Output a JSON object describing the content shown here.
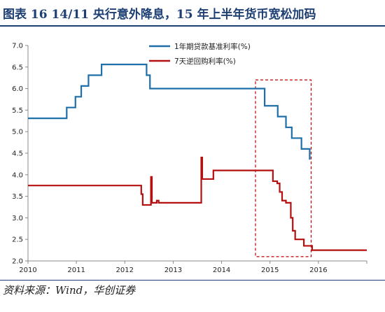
{
  "header": {
    "title": "图表 16   14/11 央行意外降息，15 年上半年货币宽松加码"
  },
  "footer": {
    "source": "资料来源：Wind，华创证券"
  },
  "chart_data": {
    "type": "line",
    "title": "",
    "xlabel": "",
    "ylabel": "",
    "x_ticks": [
      "2010",
      "2011",
      "2012",
      "2013",
      "2014",
      "2015",
      "2016"
    ],
    "y_ticks": [
      "2.0",
      "2.5",
      "3.0",
      "3.5",
      "4.0",
      "4.5",
      "5.0",
      "5.5",
      "6.0",
      "6.5",
      "7.0"
    ],
    "xlim": [
      2010,
      2017
    ],
    "ylim": [
      2.0,
      7.0
    ],
    "grid": false,
    "legend_position": "top-center",
    "highlight_box": {
      "x": [
        2014.7,
        2015.85
      ],
      "y": [
        2.1,
        6.2
      ],
      "style": "dashed",
      "color": "#c00000"
    },
    "series": [
      {
        "name": "1年期贷款基准利率(%)",
        "color": "#1f6fa8",
        "step": true,
        "points": [
          [
            2010.0,
            5.31
          ],
          [
            2010.8,
            5.56
          ],
          [
            2010.98,
            5.81
          ],
          [
            2011.1,
            6.06
          ],
          [
            2011.25,
            6.31
          ],
          [
            2011.52,
            6.56
          ],
          [
            2012.45,
            6.31
          ],
          [
            2012.52,
            6.0
          ],
          [
            2014.89,
            5.6
          ],
          [
            2015.16,
            5.35
          ],
          [
            2015.33,
            5.1
          ],
          [
            2015.45,
            4.85
          ],
          [
            2015.65,
            4.6
          ],
          [
            2015.82,
            4.35
          ]
        ],
        "end_x": 2015.82
      },
      {
        "name": "7天逆回购利率(%)",
        "color": "#b50f0f",
        "step": true,
        "points": [
          [
            2010.0,
            3.75
          ],
          [
            2012.33,
            3.75
          ],
          [
            2012.34,
            3.55
          ],
          [
            2012.37,
            3.3
          ],
          [
            2012.5,
            3.3
          ],
          [
            2012.54,
            3.95
          ],
          [
            2012.56,
            3.35
          ],
          [
            2012.62,
            3.35
          ],
          [
            2012.66,
            3.4
          ],
          [
            2012.7,
            3.35
          ],
          [
            2013.57,
            3.35
          ],
          [
            2013.58,
            4.4
          ],
          [
            2013.6,
            3.9
          ],
          [
            2013.82,
            3.9
          ],
          [
            2013.83,
            4.1
          ],
          [
            2015.02,
            4.1
          ],
          [
            2015.06,
            3.85
          ],
          [
            2015.15,
            3.8
          ],
          [
            2015.2,
            3.6
          ],
          [
            2015.25,
            3.4
          ],
          [
            2015.33,
            3.35
          ],
          [
            2015.43,
            3.0
          ],
          [
            2015.47,
            2.7
          ],
          [
            2015.52,
            2.5
          ],
          [
            2015.7,
            2.35
          ],
          [
            2015.87,
            2.25
          ],
          [
            2017.0,
            2.25
          ]
        ],
        "end_x": 2017.0
      }
    ]
  }
}
